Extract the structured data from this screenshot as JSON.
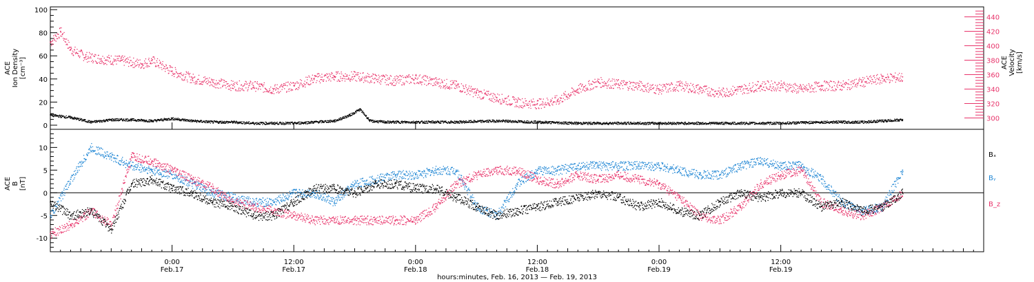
{
  "chart_data": [
    {
      "type": "scatter",
      "panel": "plasma",
      "ylabel_left": [
        "ACE",
        "Ion Density",
        "[cm⁻³]"
      ],
      "ylabel_right": [
        "ACE",
        "Velocity",
        "[km/s]"
      ],
      "ylim_left": [
        0,
        100
      ],
      "yticks_left": [
        "0",
        "20",
        "40",
        "60",
        "80",
        "100"
      ],
      "ylim_right": [
        290,
        450
      ],
      "yticks_right": [
        "300",
        "320",
        "340",
        "360",
        "380",
        "400",
        "420",
        "440"
      ],
      "series": [
        {
          "axis": "right",
          "color": "#e8336a",
          "x": [
            0.0,
            1.0,
            2.0,
            3.5,
            5.0,
            7.0,
            9.0,
            10.0,
            12.0,
            14.0,
            16.0,
            18.0,
            20.0,
            22.0,
            24.0,
            26.0,
            28.0,
            30.0,
            32.0,
            34.0,
            36.0,
            38.0,
            40.0,
            42.0,
            44.0,
            46.0,
            48.0,
            50.0,
            52.0,
            54.0,
            56.0,
            58.0,
            60.0,
            62.0,
            64.0,
            66.0,
            68.0,
            70.0,
            72.0,
            74.0,
            76.0,
            78.0,
            80.0,
            82.0,
            84.0
          ],
          "values": [
            405,
            420,
            395,
            385,
            382,
            380,
            375,
            380,
            365,
            355,
            350,
            345,
            345,
            340,
            345,
            355,
            358,
            358,
            355,
            352,
            355,
            350,
            345,
            335,
            328,
            322,
            320,
            325,
            340,
            350,
            347,
            345,
            340,
            345,
            340,
            335,
            340,
            345,
            345,
            340,
            345,
            345,
            350,
            355,
            357
          ]
        },
        {
          "axis": "left",
          "color": "#000000",
          "x": [
            0.0,
            2.0,
            4.0,
            6.0,
            8.0,
            10.0,
            12.0,
            14.0,
            16.0,
            18.0,
            20.0,
            22.0,
            24.0,
            26.0,
            28.0,
            29.5,
            30.5,
            31.5,
            33.0,
            36.0,
            40.0,
            44.0,
            48.0,
            52.0,
            56.0,
            60.0,
            64.0,
            68.0,
            72.0,
            76.0,
            80.0,
            84.0
          ],
          "values": [
            9,
            7,
            3,
            5,
            5,
            4,
            6,
            4,
            3,
            3,
            2,
            2,
            2,
            3,
            4,
            9,
            14,
            4,
            3,
            3,
            3,
            4,
            3,
            2,
            2,
            2,
            2,
            2,
            2,
            3,
            3,
            5
          ]
        }
      ]
    },
    {
      "type": "scatter",
      "panel": "magnetic-field",
      "ylabel_left": [
        "ACE",
        "B",
        "[nT]"
      ],
      "ylim": [
        -13,
        14
      ],
      "yticks": [
        "-10",
        "-5",
        "0",
        "5",
        "10"
      ],
      "legend": [
        "Bₓ",
        "Bᵧ",
        "B_z"
      ],
      "series": [
        {
          "name": "Bₓ",
          "color": "#000000",
          "x": [
            0,
            2,
            4,
            6,
            8,
            10,
            12,
            14,
            16,
            18,
            20,
            22,
            24,
            26,
            28,
            30,
            32,
            34,
            36,
            38,
            40,
            42,
            44,
            46,
            48,
            50,
            52,
            54,
            56,
            58,
            60,
            62,
            64,
            66,
            68,
            70,
            72,
            74,
            76,
            78,
            80,
            82,
            84
          ],
          "values": [
            -2,
            -5,
            -4,
            -8,
            2,
            3,
            1,
            0,
            -2,
            -3,
            -5,
            -5,
            -2,
            1,
            1,
            0,
            2,
            2,
            1,
            1,
            -1,
            -3,
            -5,
            -4,
            -3,
            -2,
            -1,
            0,
            -1,
            -3,
            -2,
            -4,
            -5,
            -2,
            0,
            -1,
            0,
            0,
            -3,
            -2,
            -4,
            -3,
            0
          ]
        },
        {
          "name": "Bᵧ",
          "color": "#1f86d4",
          "x": [
            0,
            2,
            4,
            6,
            8,
            10,
            12,
            14,
            16,
            18,
            20,
            22,
            24,
            26,
            28,
            30,
            32,
            34,
            36,
            38,
            40,
            42,
            44,
            46,
            48,
            50,
            52,
            54,
            56,
            58,
            60,
            62,
            64,
            66,
            68,
            70,
            72,
            74,
            76,
            78,
            80,
            82,
            84
          ],
          "values": [
            -5,
            3,
            10,
            8,
            6,
            5,
            4,
            2,
            0,
            -1,
            -2,
            -2,
            0,
            0,
            -2,
            2,
            3,
            4,
            4,
            5,
            5,
            -3,
            -5,
            2,
            5,
            5,
            6,
            6,
            6,
            6,
            6,
            5,
            4,
            4,
            6,
            7,
            6,
            6,
            3,
            -2,
            -4,
            -3,
            5
          ]
        },
        {
          "name": "B_z",
          "color": "#e8336a",
          "x": [
            0,
            2,
            4,
            6,
            8,
            10,
            12,
            14,
            16,
            18,
            20,
            22,
            24,
            26,
            28,
            30,
            32,
            34,
            36,
            38,
            40,
            42,
            44,
            46,
            48,
            50,
            52,
            54,
            56,
            58,
            60,
            62,
            64,
            66,
            68,
            70,
            72,
            74,
            76,
            78,
            80,
            82,
            84
          ],
          "values": [
            -9,
            -7,
            -4,
            -7,
            8,
            7,
            5,
            3,
            1,
            -2,
            -3,
            -4,
            -5,
            -6,
            -6,
            -6,
            -6,
            -6,
            -6,
            -3,
            2,
            4,
            5,
            5,
            3,
            2,
            4,
            3,
            4,
            3,
            2,
            -1,
            -5,
            -6,
            -3,
            2,
            4,
            5,
            -2,
            -4,
            -5,
            -3,
            0
          ]
        }
      ]
    }
  ],
  "x_axis": {
    "xlim_hours": [
      0,
      92
    ],
    "ticks": [
      {
        "time": "0:00",
        "date": "Feb.17"
      },
      {
        "time": "12:00",
        "date": "Feb.17"
      },
      {
        "time": "0:00",
        "date": "Feb.18"
      },
      {
        "time": "12:00",
        "date": "Feb.18"
      },
      {
        "time": "0:00",
        "date": "Feb.19"
      },
      {
        "time": "12:00",
        "date": "Feb.19"
      }
    ],
    "tick_hours": [
      12,
      24,
      36,
      48,
      60,
      72
    ],
    "xlabel": "hours:minutes, Feb. 16, 2013 — Feb. 19, 2013"
  },
  "colors": {
    "black": "#000000",
    "blue": "#1f86d4",
    "pink": "#e8336a",
    "axis": "#000000"
  }
}
